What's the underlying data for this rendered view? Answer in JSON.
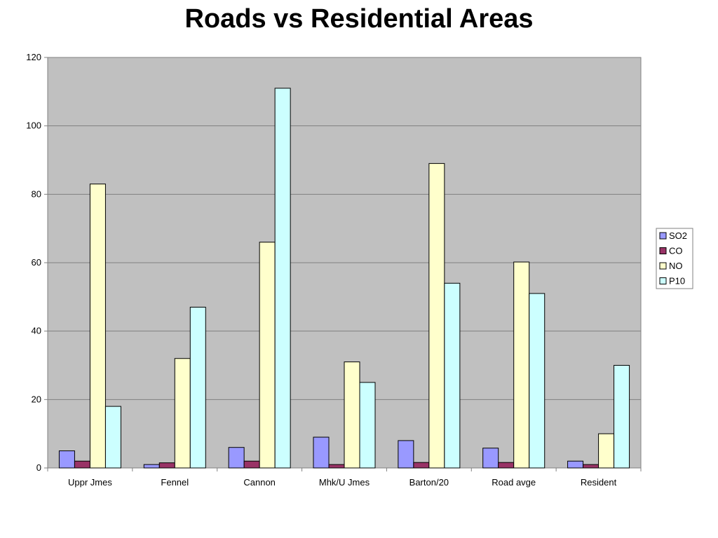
{
  "chart_data": {
    "type": "bar",
    "title": "Roads vs Residential Areas",
    "xlabel": "",
    "ylabel": "",
    "categories": [
      "Uppr Jmes",
      "Fennel",
      "Cannon",
      "Mhk/U Jmes",
      "Barton/20",
      "Road avge",
      "Resident"
    ],
    "series": [
      {
        "name": "SO2",
        "color": "#9999ff",
        "values": [
          5,
          1,
          6,
          9,
          8,
          5.8,
          2
        ]
      },
      {
        "name": "CO",
        "color": "#993366",
        "values": [
          2,
          1.5,
          2,
          1,
          1.6,
          1.6,
          1
        ]
      },
      {
        "name": "NO",
        "color": "#ffffcc",
        "values": [
          83,
          32,
          66,
          31,
          89,
          60.2,
          10
        ]
      },
      {
        "name": "P10",
        "color": "#ccffff",
        "values": [
          18,
          47,
          111,
          25,
          54,
          51,
          30
        ]
      }
    ],
    "ylim": [
      0,
      120
    ],
    "yticks": [
      0,
      20,
      40,
      60,
      80,
      100,
      120
    ],
    "grid": true,
    "legend": "right",
    "plot_background": "#c0c0c0"
  }
}
